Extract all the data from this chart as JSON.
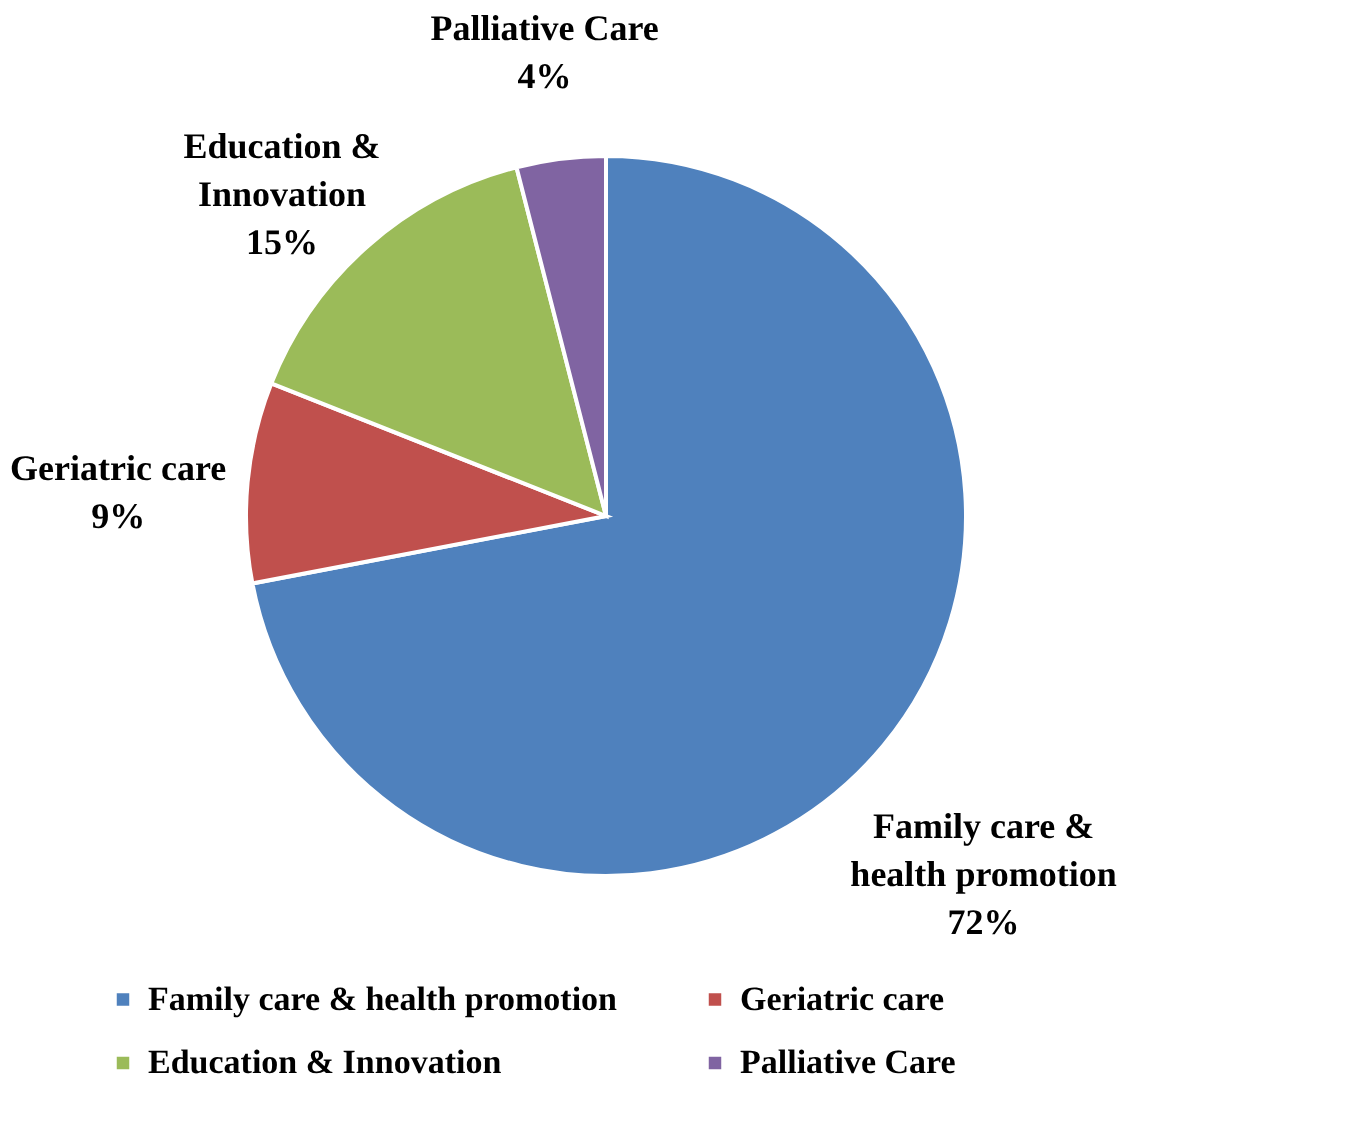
{
  "chart_data": {
    "type": "pie",
    "categories": [
      "Family care & health promotion",
      "Geriatric care",
      "Education & Innovation",
      "Palliative Care"
    ],
    "values": [
      72,
      9,
      15,
      4
    ],
    "colors": [
      "#4f81bd",
      "#c0504d",
      "#9bbb59",
      "#8064a2"
    ],
    "value_labels": [
      "72%",
      "9%",
      "15%",
      "4%"
    ],
    "legend": "bottom"
  }
}
